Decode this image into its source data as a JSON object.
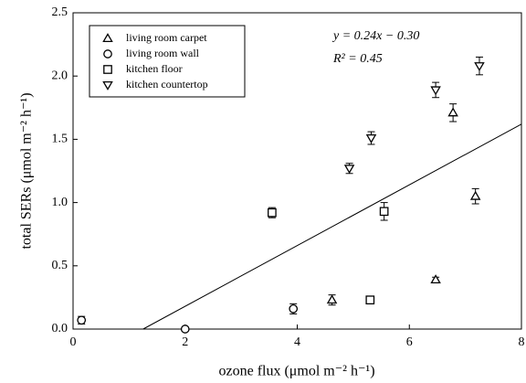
{
  "chart_data": {
    "type": "scatter",
    "x_label": "ozone flux (μmol m⁻² h⁻¹)",
    "y_label": "total SERs (μmol m⁻² h⁻¹)",
    "xlim": [
      0,
      8
    ],
    "ylim": [
      0,
      2.5
    ],
    "xticks": [
      0,
      2,
      4,
      6,
      8
    ],
    "yticks": [
      {
        "value": 0,
        "label": "0.0"
      },
      {
        "value": 0.5,
        "label": "0.5"
      },
      {
        "value": 1,
        "label": "1.0"
      },
      {
        "value": 1.5,
        "label": "1.5"
      },
      {
        "value": 2,
        "label": "2.0"
      },
      {
        "value": 2.5,
        "label": "2.5"
      }
    ],
    "legend": "upper left",
    "series": [
      {
        "name": "living room carpet",
        "marker": "triangle-up",
        "color": "#000000",
        "x": [
          4.62,
          6.47,
          6.78,
          7.18
        ],
        "values": [
          0.23,
          0.39,
          1.71,
          1.05
        ],
        "errors": [
          0.04,
          0.02,
          0.07,
          0.06
        ]
      },
      {
        "name": "living room wall",
        "marker": "circle",
        "color": "#000000",
        "x": [
          0.15,
          2.0,
          3.93
        ],
        "values": [
          0.07,
          0.0,
          0.16
        ],
        "errors": [
          0.03,
          0.01,
          0.04
        ]
      },
      {
        "name": "kitchen floor",
        "marker": "square",
        "color": "#000000",
        "x": [
          3.55,
          5.3,
          5.55
        ],
        "values": [
          0.92,
          0.23,
          0.93
        ],
        "errors": [
          0.04,
          0.02,
          0.07
        ]
      },
      {
        "name": "kitchen countertop",
        "marker": "triangle-down",
        "color": "#000000",
        "x": [
          4.93,
          5.32,
          6.47,
          7.25
        ],
        "values": [
          1.27,
          1.51,
          1.89,
          2.08
        ],
        "errors": [
          0.04,
          0.05,
          0.06,
          0.07
        ]
      }
    ],
    "fit": {
      "slope": 0.24,
      "intercept": -0.3,
      "label": "y = 0.24x − 0.30",
      "r2_label": "R² = 0.45"
    }
  }
}
